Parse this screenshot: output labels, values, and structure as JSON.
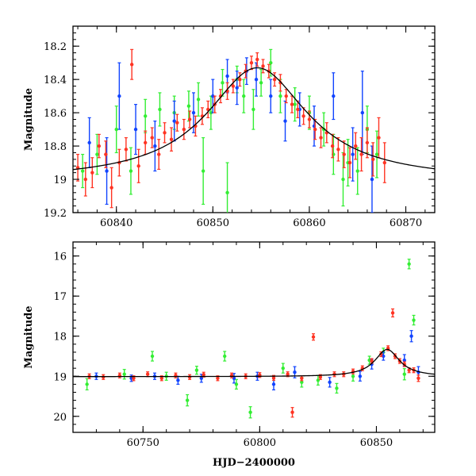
{
  "chart_data": [
    {
      "type": "scatter",
      "title": "",
      "xlabel": "",
      "ylabel": "Magnitude",
      "xlim": [
        60835.5,
        60873
      ],
      "ylim": [
        19.2,
        18.08
      ],
      "y_inverted": true,
      "xticks": [
        60840,
        60850,
        60860,
        60870
      ],
      "yticks": [
        18.2,
        18.4,
        18.6,
        18.8,
        19,
        19.2
      ],
      "colors": {
        "red": "#ff3322",
        "green": "#33ee33",
        "blue": "#1144ff",
        "model": "#000000"
      },
      "model_curve": {
        "name": "fit",
        "peak_x": 60854.6,
        "peak_mag": 18.33,
        "baseline_mag": 19.01,
        "width_days": 6.4
      },
      "series": [
        {
          "color": "red",
          "points": [
            [
              60836.0,
              18.93,
              0.08
            ],
            [
              60836.8,
              19.0,
              0.1
            ],
            [
              60837.5,
              18.96,
              0.09
            ],
            [
              60838.2,
              18.8,
              0.07
            ],
            [
              60838.9,
              18.85,
              0.08
            ],
            [
              60839.5,
              19.05,
              0.12
            ],
            [
              60840.3,
              18.9,
              0.08
            ],
            [
              60841.0,
              18.82,
              0.07
            ],
            [
              60841.6,
              18.31,
              0.09
            ],
            [
              60842.3,
              18.92,
              0.1
            ],
            [
              60843.0,
              18.78,
              0.07
            ],
            [
              60843.7,
              18.75,
              0.06
            ],
            [
              60844.4,
              18.85,
              0.09
            ],
            [
              60845.0,
              18.72,
              0.06
            ],
            [
              60845.7,
              18.76,
              0.07
            ],
            [
              60846.3,
              18.66,
              0.05
            ],
            [
              60847.0,
              18.7,
              0.06
            ],
            [
              60847.6,
              18.64,
              0.05
            ],
            [
              60848.2,
              18.68,
              0.06
            ],
            [
              60848.9,
              18.62,
              0.05
            ],
            [
              60849.5,
              18.58,
              0.05
            ],
            [
              60850.2,
              18.55,
              0.05
            ],
            [
              60850.8,
              18.5,
              0.04
            ],
            [
              60851.5,
              18.47,
              0.05
            ],
            [
              60852.1,
              18.44,
              0.04
            ],
            [
              60852.8,
              18.4,
              0.04
            ],
            [
              60853.4,
              18.35,
              0.04
            ],
            [
              60854.0,
              18.3,
              0.04
            ],
            [
              60854.6,
              18.28,
              0.04
            ],
            [
              60855.2,
              18.32,
              0.04
            ],
            [
              60855.8,
              18.35,
              0.04
            ],
            [
              60856.4,
              18.4,
              0.04
            ],
            [
              60857.0,
              18.42,
              0.05
            ],
            [
              60857.6,
              18.5,
              0.04
            ],
            [
              60858.2,
              18.55,
              0.05
            ],
            [
              60858.8,
              18.58,
              0.05
            ],
            [
              60859.4,
              18.62,
              0.05
            ],
            [
              60860.0,
              18.64,
              0.05
            ],
            [
              60860.6,
              18.7,
              0.06
            ],
            [
              60861.2,
              18.75,
              0.06
            ],
            [
              60861.8,
              18.72,
              0.06
            ],
            [
              60862.4,
              18.8,
              0.07
            ],
            [
              60863.0,
              18.82,
              0.07
            ],
            [
              60863.6,
              18.85,
              0.08
            ],
            [
              60864.2,
              18.9,
              0.09
            ],
            [
              60864.8,
              18.8,
              0.08
            ],
            [
              60865.4,
              18.85,
              0.1
            ],
            [
              60866.0,
              18.78,
              0.09
            ],
            [
              60866.6,
              18.88,
              0.1
            ],
            [
              60867.2,
              18.75,
              0.12
            ],
            [
              60867.8,
              18.9,
              0.12
            ]
          ]
        },
        {
          "color": "green",
          "points": [
            [
              60836.5,
              18.95,
              0.1
            ],
            [
              60838.0,
              18.85,
              0.12
            ],
            [
              60840.0,
              18.7,
              0.14
            ],
            [
              60841.5,
              18.95,
              0.14
            ],
            [
              60843.0,
              18.62,
              0.1
            ],
            [
              60844.5,
              18.58,
              0.1
            ],
            [
              60846.0,
              18.6,
              0.1
            ],
            [
              60847.5,
              18.56,
              0.09
            ],
            [
              60848.5,
              18.52,
              0.1
            ],
            [
              60849.0,
              18.95,
              0.2
            ],
            [
              60849.8,
              18.6,
              0.1
            ],
            [
              60851.0,
              18.42,
              0.08
            ],
            [
              60851.5,
              19.08,
              0.18
            ],
            [
              60852.5,
              18.4,
              0.08
            ],
            [
              60853.2,
              18.5,
              0.1
            ],
            [
              60854.2,
              18.58,
              0.12
            ],
            [
              60855.0,
              18.42,
              0.08
            ],
            [
              60856.0,
              18.3,
              0.08
            ],
            [
              60857.0,
              18.5,
              0.1
            ],
            [
              60858.5,
              18.55,
              0.1
            ],
            [
              60860.0,
              18.6,
              0.1
            ],
            [
              60861.5,
              18.7,
              0.1
            ],
            [
              60862.5,
              18.85,
              0.12
            ],
            [
              60863.5,
              19.0,
              0.16
            ],
            [
              60864.0,
              18.9,
              0.14
            ],
            [
              60865.0,
              18.95,
              0.14
            ],
            [
              60866.0,
              18.7,
              0.14
            ],
            [
              60867.0,
              18.85,
              0.14
            ]
          ]
        },
        {
          "color": "blue",
          "points": [
            [
              60837.2,
              18.78,
              0.15
            ],
            [
              60839.0,
              18.95,
              0.2
            ],
            [
              60840.3,
              18.5,
              0.2
            ],
            [
              60842.0,
              18.7,
              0.15
            ],
            [
              60844.0,
              18.8,
              0.15
            ],
            [
              60846.0,
              18.65,
              0.12
            ],
            [
              60848.0,
              18.6,
              0.12
            ],
            [
              60850.0,
              18.5,
              0.1
            ],
            [
              60851.5,
              18.38,
              0.1
            ],
            [
              60852.5,
              18.45,
              0.1
            ],
            [
              60853.5,
              18.35,
              0.08
            ],
            [
              60854.5,
              18.4,
              0.1
            ],
            [
              60856.0,
              18.5,
              0.1
            ],
            [
              60857.5,
              18.65,
              0.12
            ],
            [
              60859.0,
              18.58,
              0.1
            ],
            [
              60860.5,
              18.68,
              0.12
            ],
            [
              60862.5,
              18.5,
              0.14
            ],
            [
              60864.5,
              18.85,
              0.16
            ],
            [
              60865.5,
              18.6,
              0.25
            ],
            [
              60866.5,
              19.0,
              0.2
            ]
          ]
        }
      ]
    },
    {
      "type": "scatter",
      "title": "",
      "xlabel": "HJD−2400000",
      "ylabel": "Magnitude",
      "xlim": [
        60720,
        60875
      ],
      "ylim": [
        20.4,
        15.65
      ],
      "y_inverted": true,
      "xticks": [
        60750,
        60800,
        60850
      ],
      "yticks": [
        16,
        17,
        18,
        19,
        20
      ],
      "colors": {
        "red": "#ff3322",
        "green": "#33ee33",
        "blue": "#1144ff",
        "model": "#000000"
      },
      "model_curve": {
        "name": "fit",
        "peak_x": 60854.6,
        "peak_mag": 18.33,
        "baseline_mag": 19.01,
        "width_days": 6.4
      },
      "series": [
        {
          "color": "red",
          "points": [
            [
              60727,
              19.0,
              0.06
            ],
            [
              60733,
              19.02,
              0.06
            ],
            [
              60740,
              18.98,
              0.06
            ],
            [
              60746,
              19.05,
              0.06
            ],
            [
              60752,
              18.95,
              0.06
            ],
            [
              60758,
              19.05,
              0.06
            ],
            [
              60764,
              18.98,
              0.06
            ],
            [
              60770,
              19.02,
              0.06
            ],
            [
              60776,
              18.96,
              0.06
            ],
            [
              60782,
              19.05,
              0.06
            ],
            [
              60788,
              18.98,
              0.06
            ],
            [
              60794,
              19.0,
              0.06
            ],
            [
              60800,
              18.97,
              0.06
            ],
            [
              60806,
              19.04,
              0.06
            ],
            [
              60812,
              18.95,
              0.06
            ],
            [
              60814,
              19.9,
              0.12
            ],
            [
              60818,
              19.05,
              0.06
            ],
            [
              60823,
              18.02,
              0.08
            ],
            [
              60826,
              19.02,
              0.06
            ],
            [
              60832,
              18.95,
              0.06
            ],
            [
              60836,
              18.95,
              0.06
            ],
            [
              60840,
              18.88,
              0.06
            ],
            [
              60844,
              18.8,
              0.06
            ],
            [
              60848,
              18.62,
              0.06
            ],
            [
              60852,
              18.45,
              0.06
            ],
            [
              60855,
              18.3,
              0.06
            ],
            [
              60858,
              18.5,
              0.06
            ],
            [
              60860,
              18.62,
              0.06
            ],
            [
              60862,
              18.7,
              0.06
            ],
            [
              60864,
              18.85,
              0.06
            ],
            [
              60857,
              17.42,
              0.1
            ],
            [
              60866,
              18.85,
              0.06
            ],
            [
              60868,
              19.05,
              0.08
            ]
          ]
        },
        {
          "color": "green",
          "points": [
            [
              60726,
              19.2,
              0.14
            ],
            [
              60742,
              18.95,
              0.12
            ],
            [
              60754,
              18.5,
              0.12
            ],
            [
              60760,
              19.0,
              0.1
            ],
            [
              60769,
              19.6,
              0.14
            ],
            [
              60773,
              18.85,
              0.1
            ],
            [
              60785,
              18.5,
              0.12
            ],
            [
              60790,
              19.2,
              0.12
            ],
            [
              60796,
              19.9,
              0.14
            ],
            [
              60810,
              18.8,
              0.12
            ],
            [
              60818,
              19.15,
              0.12
            ],
            [
              60825,
              19.1,
              0.12
            ],
            [
              60833,
              19.3,
              0.12
            ],
            [
              60840,
              19.0,
              0.12
            ],
            [
              60847,
              18.6,
              0.1
            ],
            [
              60853,
              18.4,
              0.1
            ],
            [
              60864,
              16.2,
              0.12
            ],
            [
              60866,
              17.6,
              0.12
            ],
            [
              60862,
              18.95,
              0.14
            ]
          ]
        },
        {
          "color": "blue",
          "points": [
            [
              60730,
              19.0,
              0.08
            ],
            [
              60745,
              19.05,
              0.08
            ],
            [
              60755,
              19.0,
              0.08
            ],
            [
              60765,
              19.1,
              0.1
            ],
            [
              60775,
              19.05,
              0.1
            ],
            [
              60789,
              19.05,
              0.12
            ],
            [
              60799,
              19.0,
              0.1
            ],
            [
              60806,
              19.2,
              0.14
            ],
            [
              60815,
              18.9,
              0.14
            ],
            [
              60830,
              19.15,
              0.12
            ],
            [
              60843,
              19.0,
              0.12
            ],
            [
              60848,
              18.7,
              0.12
            ],
            [
              60853,
              18.5,
              0.1
            ],
            [
              60862,
              18.6,
              0.14
            ],
            [
              60865,
              18.0,
              0.14
            ],
            [
              60868,
              18.9,
              0.14
            ]
          ]
        }
      ]
    }
  ]
}
